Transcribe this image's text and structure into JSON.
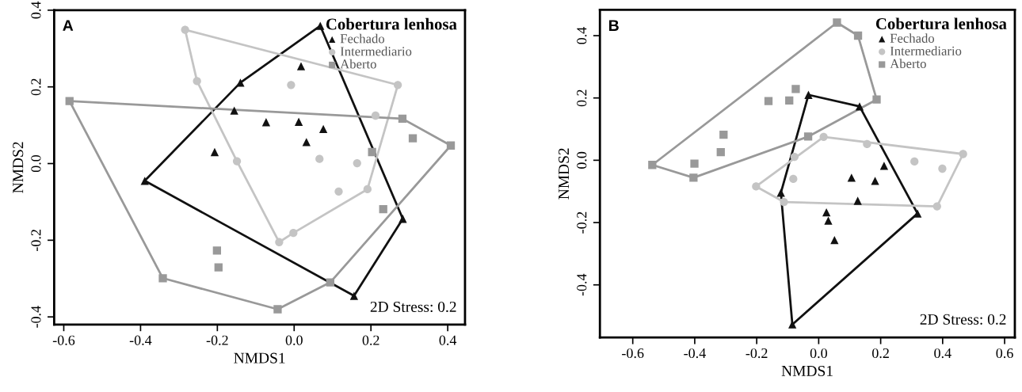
{
  "chart_data": [
    {
      "type": "scatter",
      "annotations": [
        "A",
        "2D Stress: 0.2"
      ],
      "xlabel": "NMDS1",
      "ylabel": "NMDS2",
      "legend_title": "Cobertura lenhosa",
      "legend": "top right",
      "grid": false,
      "xlim": [
        -0.625,
        0.445
      ],
      "ylim": [
        -0.42,
        0.4
      ],
      "xticks": [
        -0.6,
        -0.4,
        -0.2,
        {
          "value": 0,
          "label": "0.0"
        },
        0.2,
        0.4
      ],
      "yticks": [
        -0.4,
        -0.2,
        {
          "value": 0,
          "label": "0.0"
        },
        0.2,
        0.4
      ],
      "series": [
        {
          "type": "line",
          "color": "#111111",
          "x": [
            0.068,
            0.283
          ],
          "values": [
            0.359,
            -0.144
          ]
        },
        {
          "type": "line",
          "color": "#111111",
          "x": [
            0.283,
            0.156
          ],
          "values": [
            -0.144,
            -0.345
          ]
        },
        {
          "type": "line",
          "color": "#111111",
          "x": [
            0.156,
            -0.389
          ],
          "values": [
            -0.345,
            -0.045
          ]
        },
        {
          "type": "line",
          "color": "#111111",
          "x": [
            -0.389,
            -0.14
          ],
          "values": [
            -0.045,
            0.211
          ]
        },
        {
          "type": "line",
          "color": "#111111",
          "x": [
            -0.14,
            0.068
          ],
          "values": [
            0.211,
            0.359
          ]
        },
        {
          "type": "line",
          "color": "#c4c4c4",
          "x": [
            -0.284,
            0.27
          ],
          "values": [
            0.349,
            0.205
          ]
        },
        {
          "type": "line",
          "color": "#c4c4c4",
          "x": [
            0.27,
            0.191
          ],
          "values": [
            0.205,
            -0.067
          ]
        },
        {
          "type": "line",
          "color": "#c4c4c4",
          "x": [
            0.191,
            -0.002
          ],
          "values": [
            -0.067,
            -0.181
          ]
        },
        {
          "type": "line",
          "color": "#c4c4c4",
          "x": [
            -0.002,
            -0.039
          ],
          "values": [
            -0.181,
            -0.205
          ]
        },
        {
          "type": "line",
          "color": "#c4c4c4",
          "x": [
            -0.039,
            -0.149
          ],
          "values": [
            -0.205,
            0.006
          ]
        },
        {
          "type": "line",
          "color": "#c4c4c4",
          "x": [
            -0.149,
            -0.253
          ],
          "values": [
            0.006,
            0.215
          ]
        },
        {
          "type": "line",
          "color": "#c4c4c4",
          "x": [
            -0.253,
            -0.284
          ],
          "values": [
            0.215,
            0.349
          ]
        },
        {
          "type": "line",
          "color": "#999999",
          "x": [
            -0.585,
            0.282
          ],
          "values": [
            0.163,
            0.117
          ]
        },
        {
          "type": "line",
          "color": "#999999",
          "x": [
            0.282,
            0.408
          ],
          "values": [
            0.117,
            0.047
          ]
        },
        {
          "type": "line",
          "color": "#999999",
          "x": [
            0.408,
            0.094
          ],
          "values": [
            0.047,
            -0.31
          ]
        },
        {
          "type": "line",
          "color": "#999999",
          "x": [
            0.094,
            -0.043
          ],
          "values": [
            -0.31,
            -0.38
          ]
        },
        {
          "type": "line",
          "color": "#999999",
          "x": [
            -0.043,
            -0.342
          ],
          "values": [
            -0.38,
            -0.299
          ]
        },
        {
          "type": "line",
          "color": "#999999",
          "x": [
            -0.342,
            -0.585
          ],
          "values": [
            -0.299,
            0.163
          ]
        },
        {
          "name": "Fechado",
          "color": "#111111",
          "marker": "triangle",
          "x": [
            0.068,
            -0.14,
            -0.156,
            -0.073,
            0.012,
            0.076,
            0.032,
            0.018,
            -0.207,
            -0.389,
            0.283,
            0.156
          ],
          "values": [
            0.359,
            0.211,
            0.138,
            0.108,
            0.109,
            0.09,
            0.056,
            0.254,
            0.03,
            -0.045,
            -0.144,
            -0.345
          ]
        },
        {
          "name": "Intermediario",
          "color": "#c4c4c4",
          "marker": "circle",
          "x": [
            -0.284,
            -0.253,
            -0.008,
            0.27,
            0.212,
            -0.149,
            0.066,
            0.164,
            0.116,
            0.191,
            -0.002,
            -0.039
          ],
          "values": [
            0.349,
            0.215,
            0.205,
            0.205,
            0.125,
            0.006,
            0.012,
            0.001,
            -0.073,
            -0.067,
            -0.181,
            -0.205
          ]
        },
        {
          "name": "Aberto",
          "color": "#999999",
          "marker": "square",
          "x": [
            -0.585,
            0.282,
            0.309,
            0.408,
            0.203,
            0.232,
            -0.201,
            -0.197,
            -0.342,
            -0.043,
            0.094
          ],
          "values": [
            0.163,
            0.117,
            0.066,
            0.047,
            0.03,
            -0.119,
            -0.227,
            -0.271,
            -0.299,
            -0.38,
            -0.31
          ]
        }
      ]
    },
    {
      "type": "scatter",
      "annotations": [
        "B",
        "2D Stress: 0.2"
      ],
      "xlabel": "NMDS1",
      "ylabel": "NMDS2",
      "legend_title": "Cobertura lenhosa",
      "legend": "top right",
      "grid": false,
      "xlim": [
        -0.706,
        0.633
      ],
      "ylim": [
        -0.569,
        0.483
      ],
      "xticks": [
        -0.6,
        -0.4,
        -0.2,
        {
          "value": 0,
          "label": "0.0"
        },
        0.2,
        0.4,
        0.6
      ],
      "yticks": [
        -0.4,
        -0.2,
        {
          "value": 0,
          "label": "0.0"
        },
        0.2,
        0.4
      ],
      "series": [
        {
          "type": "line",
          "color": "#111111",
          "x": [
            -0.033,
            0.132
          ],
          "values": [
            0.21,
            0.173
          ]
        },
        {
          "type": "line",
          "color": "#111111",
          "x": [
            0.132,
            0.319
          ],
          "values": [
            0.173,
            -0.171
          ]
        },
        {
          "type": "line",
          "color": "#111111",
          "x": [
            0.319,
            -0.085
          ],
          "values": [
            -0.171,
            -0.527
          ]
        },
        {
          "type": "line",
          "color": "#111111",
          "x": [
            -0.085,
            -0.122
          ],
          "values": [
            -0.527,
            -0.104
          ]
        },
        {
          "type": "line",
          "color": "#111111",
          "x": [
            -0.122,
            -0.033
          ],
          "values": [
            -0.104,
            0.21
          ]
        },
        {
          "type": "line",
          "color": "#c4c4c4",
          "x": [
            0.016,
            0.466
          ],
          "values": [
            0.075,
            0.02
          ]
        },
        {
          "type": "line",
          "color": "#c4c4c4",
          "x": [
            0.466,
            0.382
          ],
          "values": [
            0.02,
            -0.148
          ]
        },
        {
          "type": "line",
          "color": "#c4c4c4",
          "x": [
            0.382,
            -0.112
          ],
          "values": [
            -0.148,
            -0.134
          ]
        },
        {
          "type": "line",
          "color": "#c4c4c4",
          "x": [
            -0.112,
            -0.202
          ],
          "values": [
            -0.134,
            -0.084
          ]
        },
        {
          "type": "line",
          "color": "#c4c4c4",
          "x": [
            -0.202,
            0.016
          ],
          "values": [
            -0.084,
            0.075
          ]
        },
        {
          "type": "line",
          "color": "#999999",
          "x": [
            0.059,
            0.127
          ],
          "values": [
            0.442,
            0.4
          ]
        },
        {
          "type": "line",
          "color": "#999999",
          "x": [
            0.127,
            0.187
          ],
          "values": [
            0.4,
            0.195
          ]
        },
        {
          "type": "line",
          "color": "#999999",
          "x": [
            0.187,
            -0.034
          ],
          "values": [
            0.195,
            0.076
          ]
        },
        {
          "type": "line",
          "color": "#999999",
          "x": [
            -0.034,
            -0.404
          ],
          "values": [
            0.076,
            -0.056
          ]
        },
        {
          "type": "line",
          "color": "#999999",
          "x": [
            -0.404,
            -0.537
          ],
          "values": [
            -0.056,
            -0.015
          ]
        },
        {
          "type": "line",
          "color": "#999999",
          "x": [
            -0.537,
            0.059
          ],
          "values": [
            -0.015,
            0.442
          ]
        },
        {
          "name": "Fechado",
          "color": "#111111",
          "marker": "triangle",
          "x": [
            -0.033,
            0.132,
            0.319,
            -0.085,
            -0.122,
            0.211,
            0.106,
            0.182,
            0.126,
            0.025,
            0.031,
            0.051
          ],
          "values": [
            0.21,
            0.173,
            -0.171,
            -0.527,
            -0.104,
            -0.018,
            -0.056,
            -0.066,
            -0.13,
            -0.167,
            -0.194,
            -0.256
          ]
        },
        {
          "name": "Intermediario",
          "color": "#c4c4c4",
          "marker": "circle",
          "x": [
            0.016,
            0.156,
            0.466,
            0.309,
            0.399,
            0.382,
            -0.202,
            -0.078,
            -0.082,
            -0.112
          ],
          "values": [
            0.075,
            0.052,
            0.02,
            -0.004,
            -0.027,
            -0.148,
            -0.084,
            0.011,
            -0.06,
            -0.134
          ]
        },
        {
          "name": "Aberto",
          "color": "#999999",
          "marker": "square",
          "x": [
            0.059,
            0.127,
            0.187,
            -0.034,
            -0.537,
            -0.404,
            -0.162,
            -0.095,
            -0.074,
            -0.307,
            -0.316,
            -0.401
          ],
          "values": [
            0.442,
            0.4,
            0.195,
            0.076,
            -0.015,
            -0.056,
            0.19,
            0.192,
            0.229,
            0.082,
            0.026,
            -0.011
          ]
        }
      ]
    }
  ]
}
